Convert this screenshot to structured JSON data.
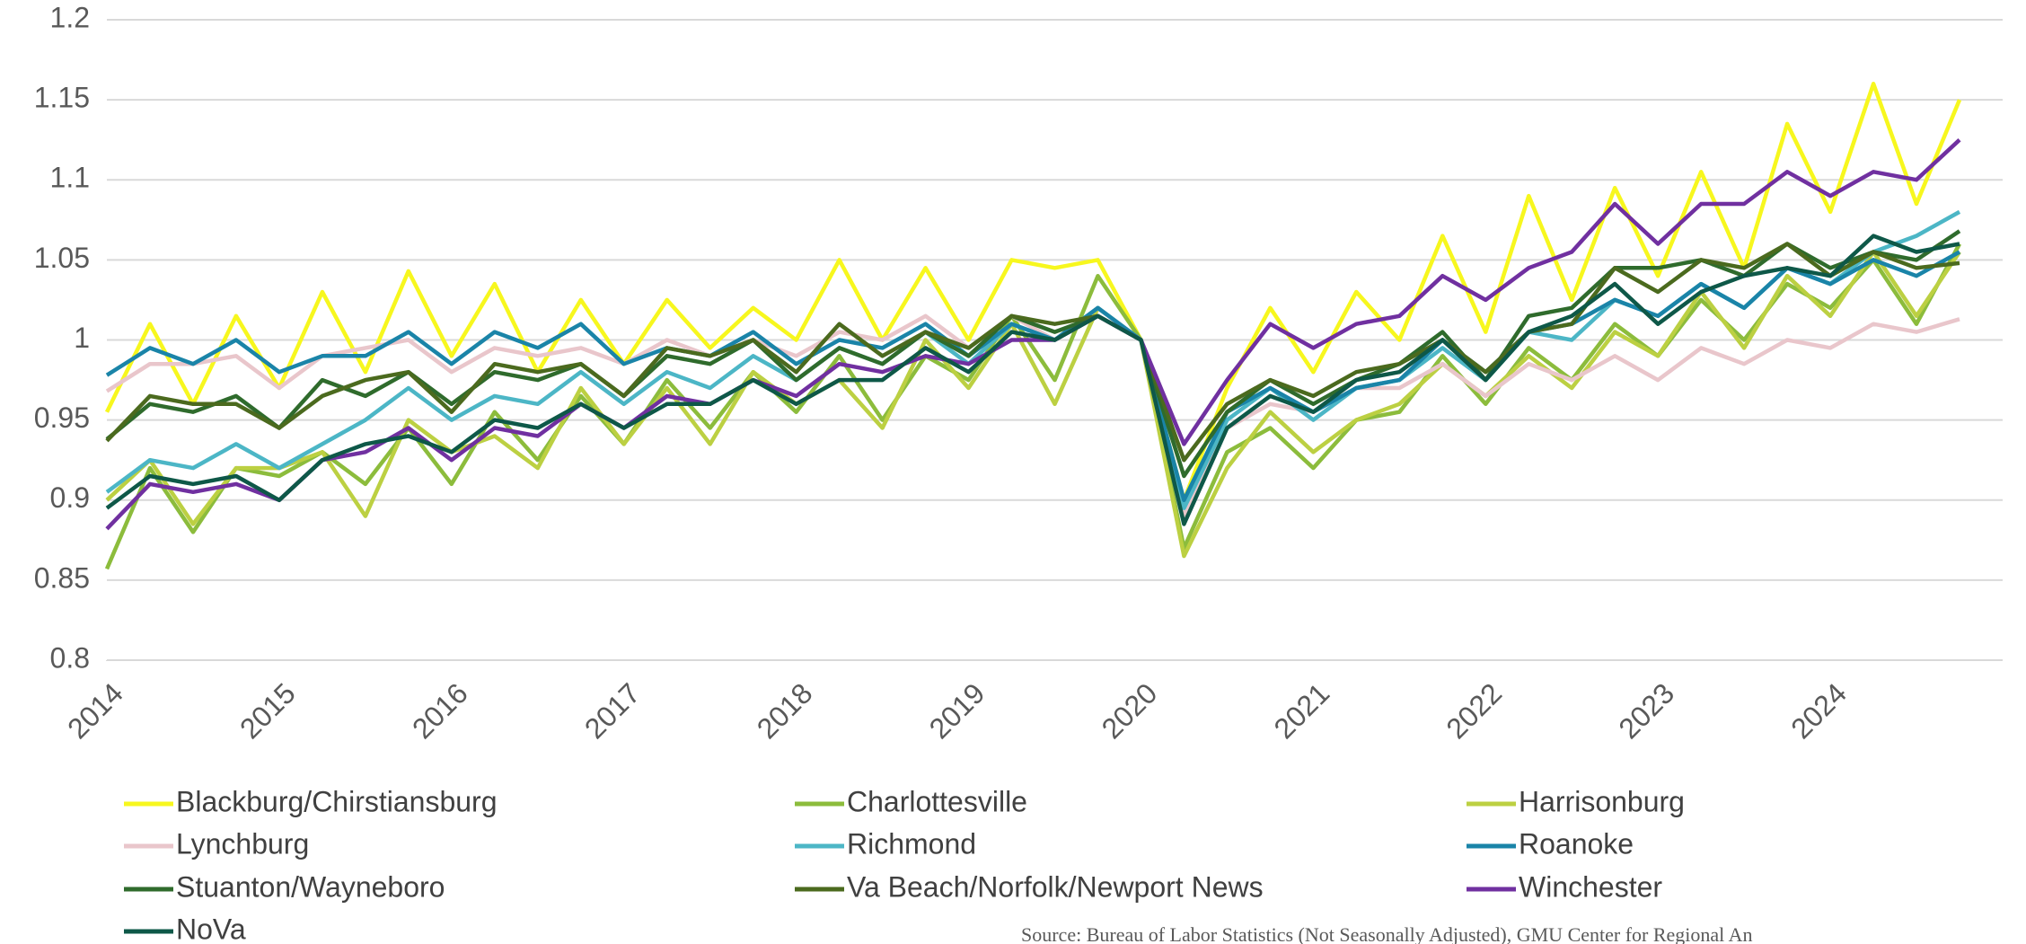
{
  "chart_data": {
    "type": "line",
    "source": "Source: Bureau of Labor Statistics (Not Seasonally Adjusted), GMU Center for Regional An",
    "x": [
      2014,
      2014.25,
      2014.5,
      2014.75,
      2015,
      2015.25,
      2015.5,
      2015.75,
      2016,
      2016.25,
      2016.5,
      2016.75,
      2017,
      2017.25,
      2017.5,
      2017.75,
      2018,
      2018.25,
      2018.5,
      2018.75,
      2019,
      2019.25,
      2019.5,
      2019.75,
      2020,
      2020.25,
      2020.5,
      2020.75,
      2021,
      2021.25,
      2021.5,
      2021.75,
      2022,
      2022.25,
      2022.5,
      2022.75,
      2023,
      2023.25,
      2023.5,
      2023.75,
      2024,
      2024.25,
      2024.5,
      2024.75
    ],
    "xlim": [
      2014,
      2025
    ],
    "xticks": [
      2014,
      2015,
      2016,
      2017,
      2018,
      2019,
      2020,
      2021,
      2022,
      2023,
      2024
    ],
    "ylim": [
      0.8,
      1.2
    ],
    "yticks": [
      0.8,
      0.85,
      0.9,
      0.95,
      1,
      1.05,
      1.1,
      1.15,
      1.2
    ],
    "grid": true,
    "legend": "bottom",
    "series": [
      {
        "name": "Blackburg/Chirstiansburg",
        "color": "#f7f71e",
        "values": [
          0.955,
          1.01,
          0.96,
          1.015,
          0.97,
          1.03,
          0.98,
          1.043,
          0.99,
          1.035,
          0.98,
          1.025,
          0.985,
          1.025,
          0.995,
          1.02,
          1.0,
          1.05,
          1.0,
          1.045,
          1.0,
          1.05,
          1.045,
          1.05,
          1.0,
          0.9,
          0.97,
          1.02,
          0.98,
          1.03,
          1.0,
          1.065,
          1.005,
          1.09,
          1.025,
          1.095,
          1.04,
          1.105,
          1.045,
          1.135,
          1.08,
          1.16,
          1.085,
          1.15
        ]
      },
      {
        "name": "Charlottesville",
        "color": "#8cbc3c",
        "values": [
          0.857,
          0.92,
          0.88,
          0.92,
          0.915,
          0.93,
          0.91,
          0.945,
          0.91,
          0.955,
          0.925,
          0.965,
          0.935,
          0.975,
          0.945,
          0.98,
          0.955,
          0.99,
          0.95,
          0.99,
          0.975,
          1.015,
          0.975,
          1.04,
          1.0,
          0.87,
          0.93,
          0.945,
          0.92,
          0.95,
          0.955,
          0.99,
          0.96,
          0.995,
          0.975,
          1.01,
          0.99,
          1.025,
          1.0,
          1.035,
          1.02,
          1.05,
          1.01,
          1.06
        ]
      },
      {
        "name": "Harrisonburg",
        "color": "#bcd042",
        "values": [
          0.9,
          0.925,
          0.885,
          0.92,
          0.92,
          0.93,
          0.89,
          0.95,
          0.93,
          0.94,
          0.92,
          0.97,
          0.935,
          0.97,
          0.935,
          0.98,
          0.96,
          0.975,
          0.945,
          1.0,
          0.97,
          1.01,
          0.96,
          1.02,
          1.0,
          0.865,
          0.92,
          0.955,
          0.93,
          0.95,
          0.96,
          0.985,
          0.965,
          0.99,
          0.97,
          1.005,
          0.99,
          1.03,
          0.995,
          1.04,
          1.015,
          1.055,
          1.015,
          1.055
        ]
      },
      {
        "name": "Lynchburg",
        "color": "#e9c6cb",
        "values": [
          0.968,
          0.985,
          0.985,
          0.99,
          0.97,
          0.99,
          0.995,
          1.0,
          0.98,
          0.995,
          0.99,
          0.995,
          0.985,
          1.0,
          0.99,
          1.0,
          0.99,
          1.005,
          1.0,
          1.015,
          0.995,
          1.015,
          1.0,
          1.02,
          1.0,
          0.89,
          0.945,
          0.96,
          0.955,
          0.97,
          0.97,
          0.985,
          0.965,
          0.985,
          0.975,
          0.99,
          0.975,
          0.995,
          0.985,
          1.0,
          0.995,
          1.01,
          1.005,
          1.013
        ]
      },
      {
        "name": "Richmond",
        "color": "#4cb6c6",
        "values": [
          0.905,
          0.925,
          0.92,
          0.935,
          0.92,
          0.935,
          0.95,
          0.97,
          0.95,
          0.965,
          0.96,
          0.98,
          0.96,
          0.98,
          0.97,
          0.99,
          0.975,
          0.995,
          0.985,
          1.005,
          0.985,
          1.01,
          1.0,
          1.02,
          1.0,
          0.895,
          0.95,
          0.97,
          0.95,
          0.97,
          0.975,
          0.995,
          0.975,
          1.005,
          1.0,
          1.025,
          1.015,
          1.035,
          1.02,
          1.045,
          1.035,
          1.055,
          1.065,
          1.08
        ]
      },
      {
        "name": "Roanoke",
        "color": "#1a84a8",
        "values": [
          0.978,
          0.995,
          0.985,
          1.0,
          0.98,
          0.99,
          0.99,
          1.005,
          0.985,
          1.005,
          0.995,
          1.01,
          0.985,
          0.995,
          0.99,
          1.005,
          0.985,
          1.0,
          0.995,
          1.01,
          0.99,
          1.01,
          1.0,
          1.02,
          1.0,
          0.9,
          0.955,
          0.97,
          0.955,
          0.97,
          0.975,
          1.0,
          0.98,
          1.005,
          1.01,
          1.025,
          1.015,
          1.035,
          1.02,
          1.045,
          1.035,
          1.05,
          1.04,
          1.055
        ]
      },
      {
        "name": "Stuanton/Wayneboro",
        "color": "#2f6b2c",
        "values": [
          0.938,
          0.96,
          0.955,
          0.965,
          0.945,
          0.975,
          0.965,
          0.98,
          0.96,
          0.98,
          0.975,
          0.985,
          0.965,
          0.99,
          0.985,
          1.0,
          0.975,
          0.995,
          0.985,
          1.005,
          0.99,
          1.015,
          1.005,
          1.015,
          1.0,
          0.915,
          0.955,
          0.975,
          0.96,
          0.975,
          0.985,
          1.005,
          0.975,
          1.015,
          1.02,
          1.045,
          1.045,
          1.05,
          1.04,
          1.06,
          1.045,
          1.055,
          1.05,
          1.068
        ]
      },
      {
        "name": "Va Beach/Norfolk/Newport News",
        "color": "#4b6a1e",
        "values": [
          0.937,
          0.965,
          0.96,
          0.96,
          0.945,
          0.965,
          0.975,
          0.98,
          0.955,
          0.985,
          0.98,
          0.985,
          0.965,
          0.995,
          0.99,
          1.0,
          0.98,
          1.01,
          0.99,
          1.005,
          0.995,
          1.015,
          1.01,
          1.015,
          1.0,
          0.925,
          0.96,
          0.975,
          0.965,
          0.98,
          0.985,
          1.0,
          0.98,
          1.005,
          1.01,
          1.045,
          1.03,
          1.05,
          1.045,
          1.06,
          1.04,
          1.055,
          1.045,
          1.048
        ]
      },
      {
        "name": "Winchester",
        "color": "#7030a0",
        "values": [
          0.882,
          0.91,
          0.905,
          0.91,
          0.9,
          0.925,
          0.93,
          0.945,
          0.925,
          0.945,
          0.94,
          0.96,
          0.945,
          0.965,
          0.96,
          0.975,
          0.965,
          0.985,
          0.98,
          0.99,
          0.985,
          1.0,
          1.0,
          1.015,
          1.0,
          0.935,
          0.975,
          1.01,
          0.995,
          1.01,
          1.015,
          1.04,
          1.025,
          1.045,
          1.055,
          1.085,
          1.06,
          1.085,
          1.085,
          1.105,
          1.09,
          1.105,
          1.1,
          1.125
        ]
      },
      {
        "name": "NoVa",
        "color": "#0e5848",
        "values": [
          0.895,
          0.915,
          0.91,
          0.915,
          0.9,
          0.925,
          0.935,
          0.94,
          0.93,
          0.95,
          0.945,
          0.96,
          0.945,
          0.96,
          0.96,
          0.975,
          0.96,
          0.975,
          0.975,
          0.995,
          0.98,
          1.005,
          1.0,
          1.015,
          1.0,
          0.885,
          0.945,
          0.965,
          0.955,
          0.975,
          0.98,
          1.0,
          0.975,
          1.005,
          1.015,
          1.035,
          1.01,
          1.03,
          1.04,
          1.045,
          1.04,
          1.065,
          1.055,
          1.06
        ]
      }
    ]
  }
}
